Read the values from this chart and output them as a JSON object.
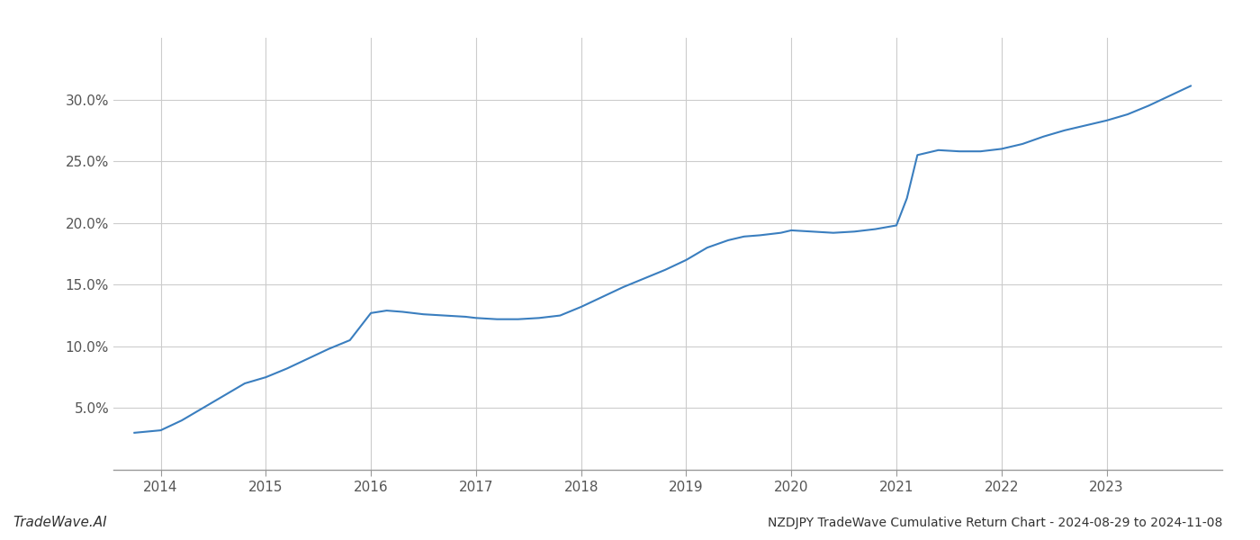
{
  "title": "NZDJPY TradeWave Cumulative Return Chart - 2024-08-29 to 2024-11-08",
  "watermark": "TradeWave.AI",
  "line_color": "#3a7ebf",
  "background_color": "#ffffff",
  "grid_color": "#cccccc",
  "x_years": [
    2013.75,
    2014.0,
    2014.2,
    2014.4,
    2014.6,
    2014.8,
    2015.0,
    2015.2,
    2015.4,
    2015.6,
    2015.8,
    2016.0,
    2016.15,
    2016.3,
    2016.5,
    2016.7,
    2016.9,
    2017.0,
    2017.2,
    2017.4,
    2017.6,
    2017.8,
    2018.0,
    2018.2,
    2018.4,
    2018.6,
    2018.8,
    2019.0,
    2019.2,
    2019.4,
    2019.55,
    2019.7,
    2019.9,
    2020.0,
    2020.2,
    2020.4,
    2020.6,
    2020.8,
    2021.0,
    2021.1,
    2021.2,
    2021.4,
    2021.6,
    2021.8,
    2022.0,
    2022.2,
    2022.4,
    2022.6,
    2022.8,
    2023.0,
    2023.2,
    2023.4,
    2023.6,
    2023.8
  ],
  "y_values": [
    3.0,
    3.2,
    4.0,
    5.0,
    6.0,
    7.0,
    7.5,
    8.2,
    9.0,
    9.8,
    10.5,
    12.7,
    12.9,
    12.8,
    12.6,
    12.5,
    12.4,
    12.3,
    12.2,
    12.2,
    12.3,
    12.5,
    13.2,
    14.0,
    14.8,
    15.5,
    16.2,
    17.0,
    18.0,
    18.6,
    18.9,
    19.0,
    19.2,
    19.4,
    19.3,
    19.2,
    19.3,
    19.5,
    19.8,
    22.0,
    25.5,
    25.9,
    25.8,
    25.8,
    26.0,
    26.4,
    27.0,
    27.5,
    27.9,
    28.3,
    28.8,
    29.5,
    30.3,
    31.1
  ],
  "xlim": [
    2013.55,
    2024.1
  ],
  "ylim": [
    0,
    35
  ],
  "yticks": [
    5.0,
    10.0,
    15.0,
    20.0,
    25.0,
    30.0
  ],
  "xticks": [
    2014,
    2015,
    2016,
    2017,
    2018,
    2019,
    2020,
    2021,
    2022,
    2023
  ],
  "line_width": 1.5,
  "title_fontsize": 10,
  "tick_fontsize": 11,
  "watermark_fontsize": 11
}
